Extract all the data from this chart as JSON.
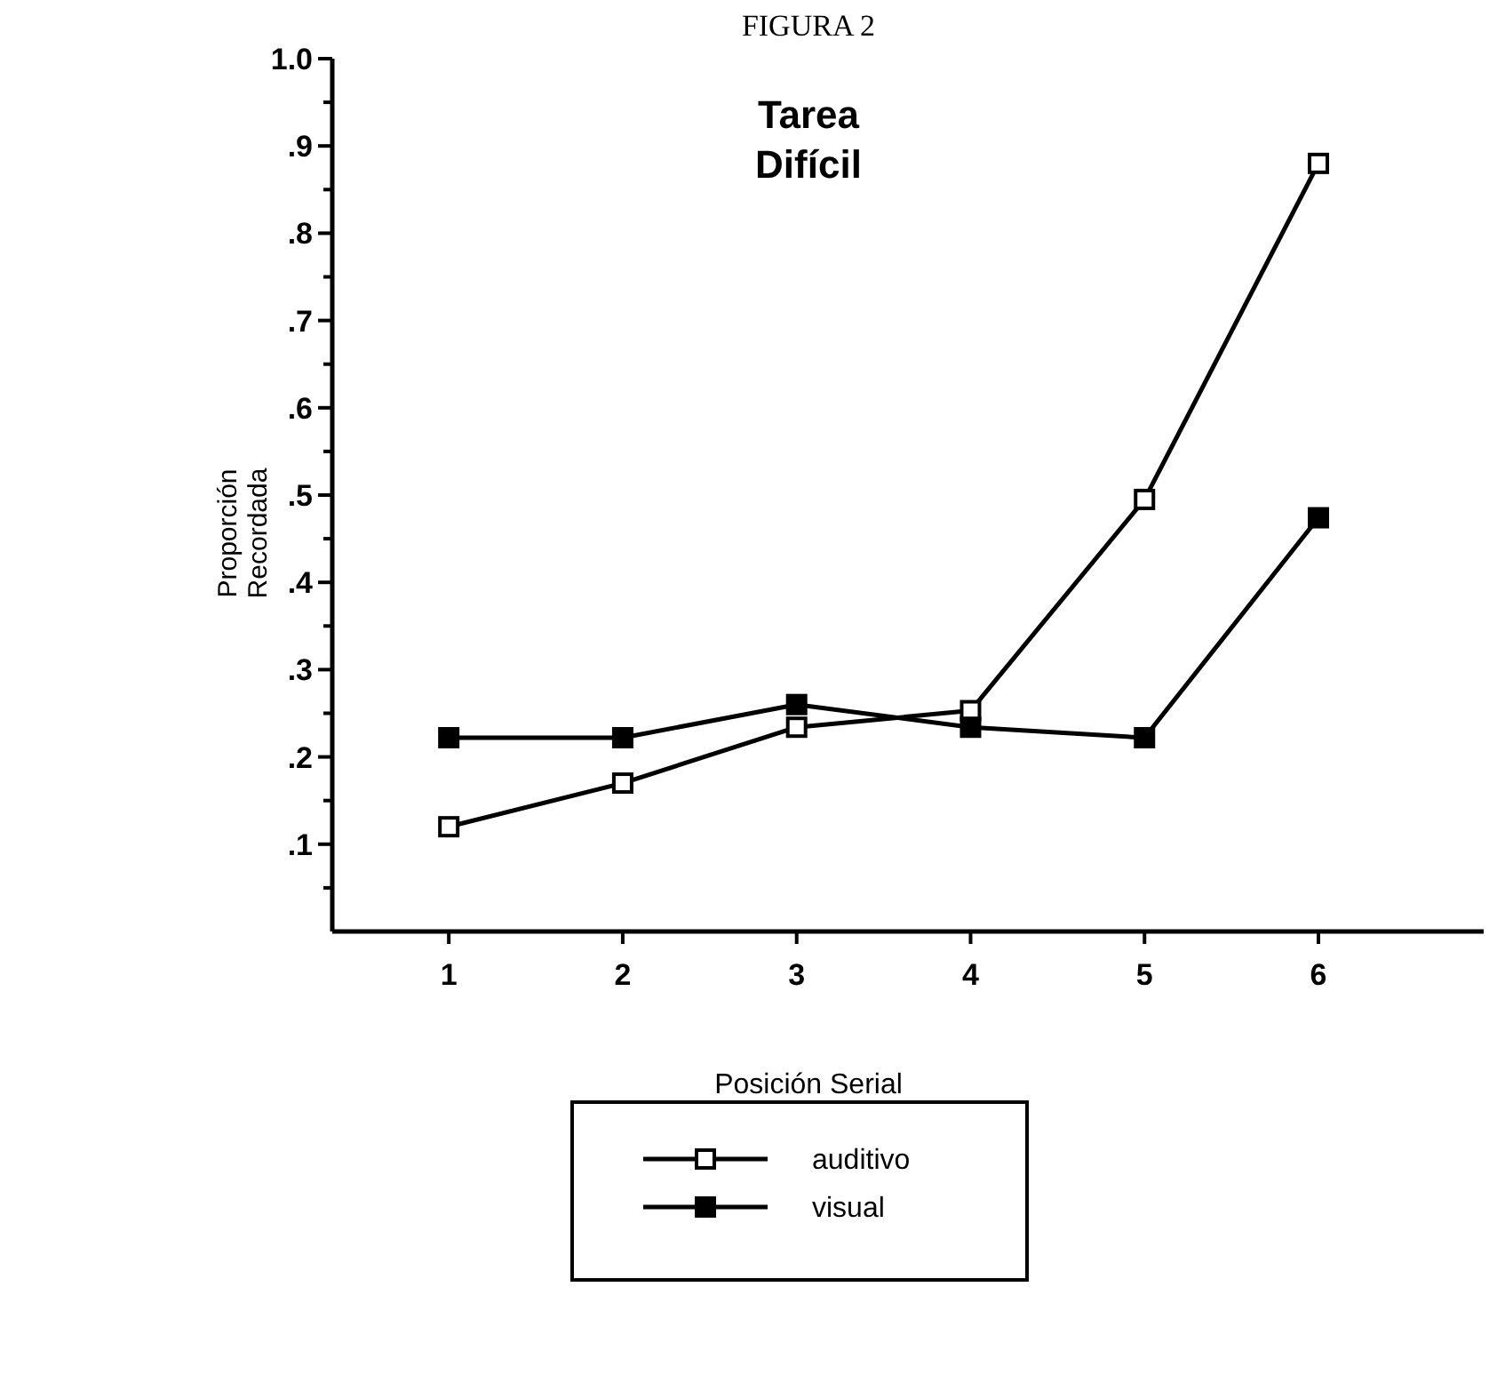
{
  "chart_data": {
    "type": "line",
    "title": "FIGURA 2",
    "annotations": [
      "Tarea Difícil"
    ],
    "xlabel": "Posición Serial",
    "ylabel": "Proporción Recordada",
    "x": [
      1,
      2,
      3,
      4,
      5,
      6
    ],
    "xlim": [
      0.33,
      6.95
    ],
    "xticks": [
      1,
      2,
      3,
      4,
      5,
      6
    ],
    "ylim": [
      0,
      1
    ],
    "yticks": [
      {
        "value": 0.05,
        "label": null
      },
      {
        "value": 0.1,
        "label": ".1"
      },
      {
        "value": 0.15,
        "label": null
      },
      {
        "value": 0.2,
        "label": ".2"
      },
      {
        "value": 0.25,
        "label": null
      },
      {
        "value": 0.3,
        "label": ".3"
      },
      {
        "value": 0.35,
        "label": null
      },
      {
        "value": 0.4,
        "label": ".4"
      },
      {
        "value": 0.45,
        "label": null
      },
      {
        "value": 0.5,
        "label": ".5"
      },
      {
        "value": 0.55,
        "label": null
      },
      {
        "value": 0.6,
        "label": ".6"
      },
      {
        "value": 0.65,
        "label": null
      },
      {
        "value": 0.7,
        "label": ".7"
      },
      {
        "value": 0.75,
        "label": null
      },
      {
        "value": 0.8,
        "label": ".8"
      },
      {
        "value": 0.85,
        "label": null
      },
      {
        "value": 0.9,
        "label": ".9"
      },
      {
        "value": 0.95,
        "label": null
      },
      {
        "value": 1.0,
        "label": "1.0"
      }
    ],
    "marker": "square",
    "line_style": "solid",
    "grid": false,
    "legend": "bottom",
    "series": [
      {
        "name": "auditivo",
        "color": "#000000",
        "values": [
          0.12,
          0.17,
          0.234,
          0.253,
          0.495,
          0.88
        ]
      },
      {
        "name": "visual",
        "color": "#000000",
        "values": [
          0.222,
          0.222,
          0.26,
          0.234,
          0.222,
          0.474
        ]
      }
    ]
  }
}
